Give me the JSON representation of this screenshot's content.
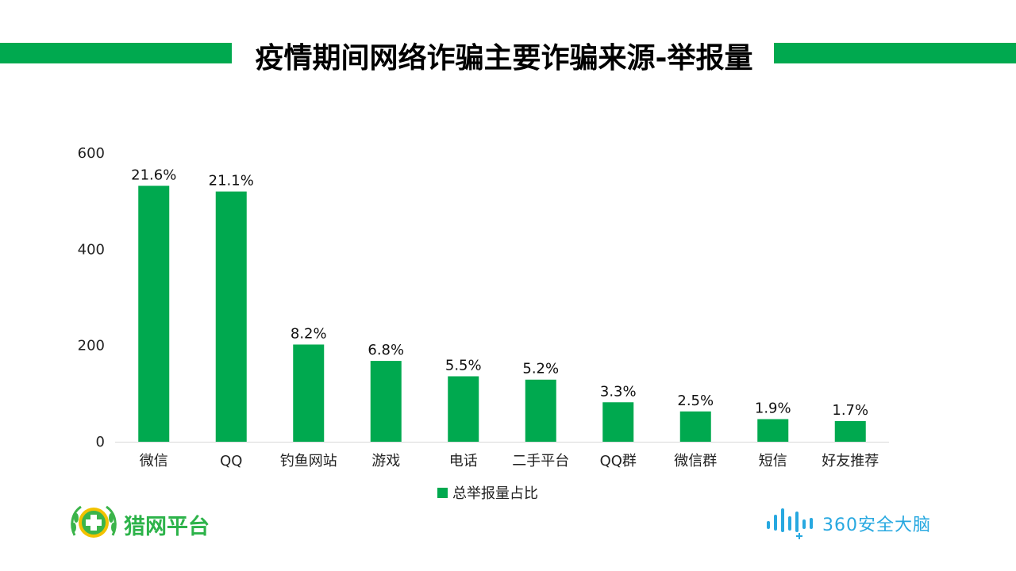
{
  "title": "疫情期间网络诈骗主要诈骗来源-举报量",
  "colors": {
    "accent": "#00A94F",
    "logo_blue": "#27A8E0",
    "logo_green": "#2DB34A"
  },
  "logos": {
    "left": "猎网平台",
    "right": "360安全大脑"
  },
  "chart_data": {
    "type": "bar",
    "categories": [
      "微信",
      "QQ",
      "钓鱼网站",
      "游戏",
      "电话",
      "二手平台",
      "QQ群",
      "微信群",
      "短信",
      "好友推荐"
    ],
    "series": [
      {
        "name": "总举报量占比",
        "values": [
          532,
          520,
          202,
          168,
          136,
          129,
          82,
          63,
          47,
          43
        ],
        "labels": [
          "21.6%",
          "21.1%",
          "8.2%",
          "6.8%",
          "5.5%",
          "5.2%",
          "3.3%",
          "2.5%",
          "1.9%",
          "1.7%"
        ]
      }
    ],
    "yticks": [
      "0",
      "200",
      "400",
      "600"
    ],
    "ylim": [
      0,
      600
    ],
    "grid": false,
    "legend": "bottom"
  }
}
